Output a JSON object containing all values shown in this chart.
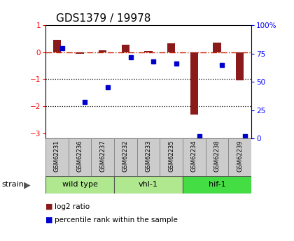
{
  "title": "GDS1379 / 19978",
  "samples": [
    "GSM62231",
    "GSM62236",
    "GSM62237",
    "GSM62232",
    "GSM62233",
    "GSM62235",
    "GSM62234",
    "GSM62238",
    "GSM62239"
  ],
  "log2_ratio": [
    0.45,
    -0.05,
    0.07,
    0.27,
    0.04,
    0.32,
    -2.3,
    0.35,
    -1.05
  ],
  "percentile_rank": [
    80,
    32,
    45,
    72,
    68,
    66,
    2,
    65,
    2
  ],
  "group_defs": [
    {
      "label": "wild type",
      "start": 0,
      "end": 2,
      "color": "#b0e890"
    },
    {
      "label": "vhl-1",
      "start": 3,
      "end": 5,
      "color": "#b0e890"
    },
    {
      "label": "hif-1",
      "start": 6,
      "end": 8,
      "color": "#44dd44"
    }
  ],
  "ylim_left": [
    -3.2,
    1.0
  ],
  "ylim_right": [
    0,
    100
  ],
  "bar_color": "#8b1a1a",
  "dot_color": "#0000cd",
  "zero_line_color": "#cc2200",
  "dotted_line_color": "#000000",
  "label_log2": "log2 ratio",
  "label_pct": "percentile rank within the sample",
  "bar_width": 0.35
}
